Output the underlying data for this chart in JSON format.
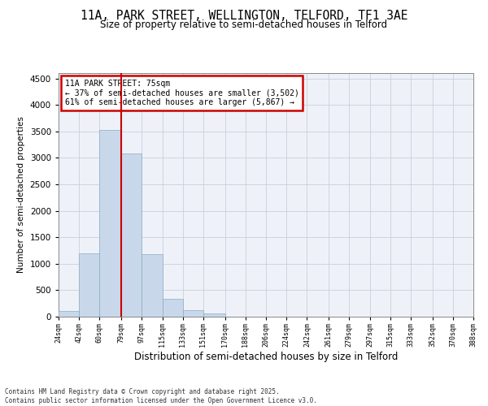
{
  "title_line1": "11A, PARK STREET, WELLINGTON, TELFORD, TF1 3AE",
  "title_line2": "Size of property relative to semi-detached houses in Telford",
  "xlabel": "Distribution of semi-detached houses by size in Telford",
  "ylabel": "Number of semi-detached properties",
  "annotation_title": "11A PARK STREET: 75sqm",
  "annotation_line1": "← 37% of semi-detached houses are smaller (3,502)",
  "annotation_line2": "61% of semi-detached houses are larger (5,867) →",
  "bin_edges": [
    24,
    42,
    60,
    79,
    97,
    115,
    133,
    151,
    170,
    188,
    206,
    224,
    242,
    261,
    279,
    297,
    315,
    333,
    352,
    370,
    388
  ],
  "bin_counts": [
    100,
    1200,
    3520,
    3080,
    1180,
    330,
    120,
    55,
    0,
    0,
    0,
    0,
    0,
    0,
    0,
    0,
    0,
    0,
    0,
    0
  ],
  "bar_color": "#c8d8ea",
  "bar_edge_color": "#8aaac8",
  "vline_color": "#cc0000",
  "vline_x": 79,
  "annotation_box_color": "#cc0000",
  "grid_color": "#c8d0dc",
  "background_color": "#eef2f8",
  "ylim": [
    0,
    4600
  ],
  "yticks": [
    0,
    500,
    1000,
    1500,
    2000,
    2500,
    3000,
    3500,
    4000,
    4500
  ],
  "footer_line1": "Contains HM Land Registry data © Crown copyright and database right 2025.",
  "footer_line2": "Contains public sector information licensed under the Open Government Licence v3.0."
}
